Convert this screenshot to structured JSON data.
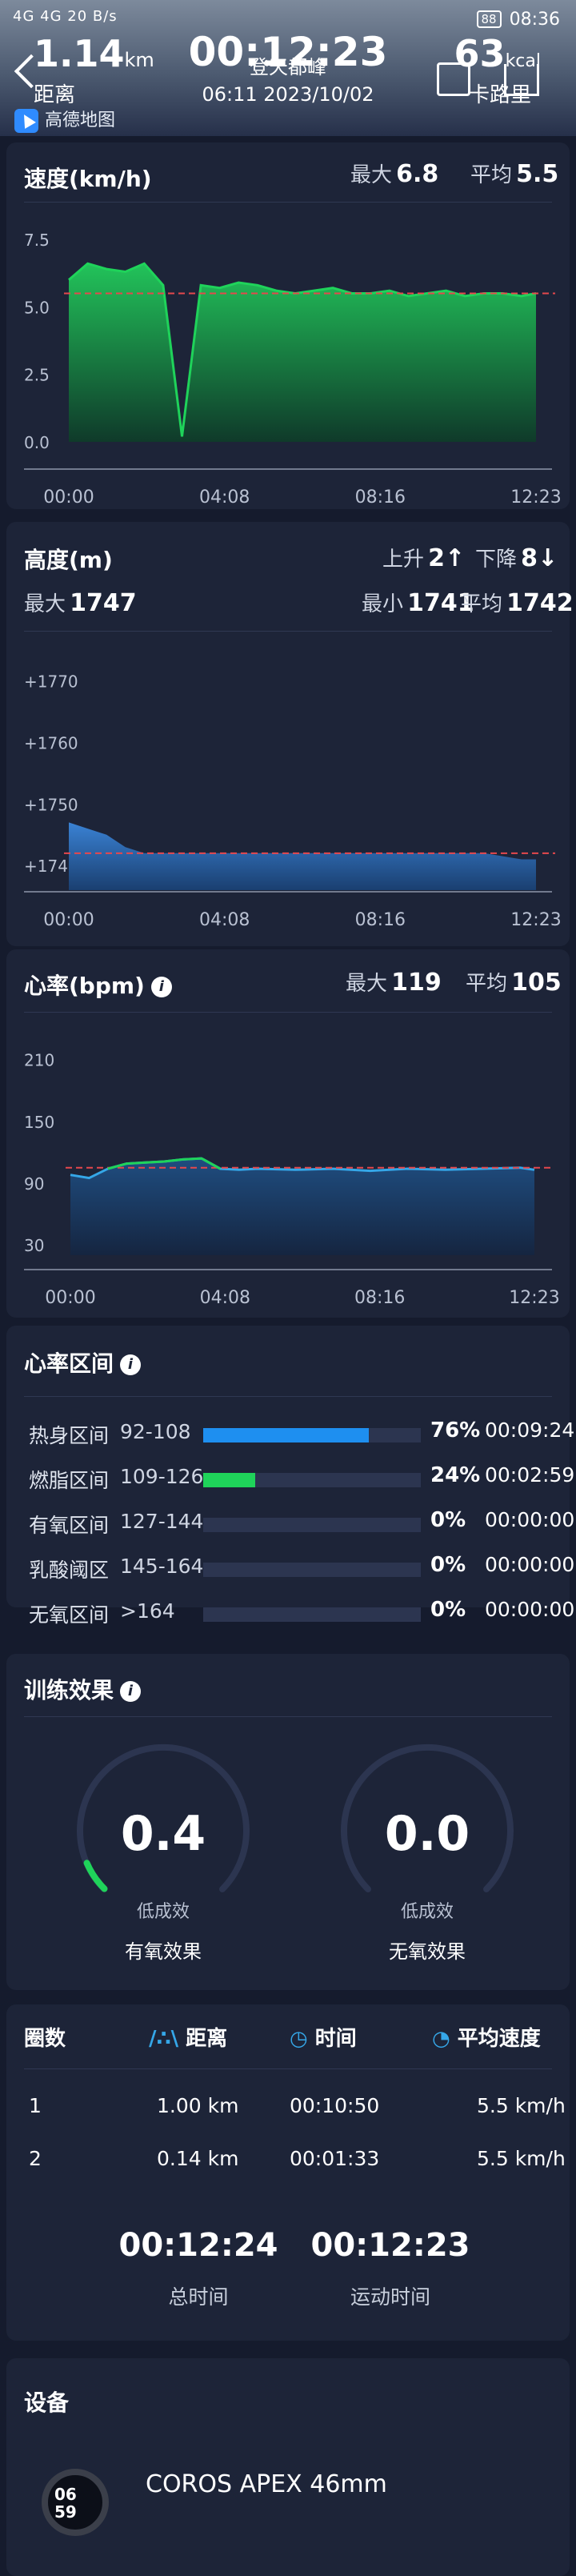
{
  "status_bar": {
    "left": "4G 4G 20 B/s",
    "battery": "88",
    "time": "08:36"
  },
  "header": {
    "distance_value": "1.14",
    "distance_unit": "km",
    "distance_label": "距离",
    "duration": "00:12:23",
    "activity_title": "登天都峰",
    "activity_time_label": "运动时间",
    "date": "06:11 2023/10/02",
    "calories_value": "63",
    "calories_unit": "kcal",
    "calories_label": "卡路里",
    "map_provider": "高德地图"
  },
  "speed": {
    "title": "速度(km/h)",
    "max_label": "最大",
    "max_value": "6.8",
    "avg_label": "平均",
    "avg_value": "5.5"
  },
  "altitude": {
    "title": "高度(m)",
    "ascent_label": "上升",
    "ascent_value": "2↑",
    "descent_label": "下降",
    "descent_value": "8↓",
    "max_label": "最大",
    "max_value": "1747",
    "min_label": "最小",
    "min_value": "1741",
    "avg_label": "平均",
    "avg_value": "1742"
  },
  "heart_rate": {
    "title": "心率(bpm)",
    "max_label": "最大",
    "max_value": "119",
    "avg_label": "平均",
    "avg_value": "105"
  },
  "hr_zones": {
    "title": "心率区间",
    "zones": [
      {
        "name": "热身区间",
        "range": "92-108",
        "percent": "76%",
        "time": "00:09:24",
        "fraction": 0.76,
        "color": "#1e8ff0"
      },
      {
        "name": "燃脂区间",
        "range": "109-126",
        "percent": "24%",
        "time": "00:02:59",
        "fraction": 0.24,
        "color": "#1fd35a"
      },
      {
        "name": "有氧区间",
        "range": "127-144",
        "percent": "0%",
        "time": "00:00:00",
        "fraction": 0,
        "color": "#f0c419"
      },
      {
        "name": "乳酸阈区",
        "range": "145-164",
        "percent": "0%",
        "time": "00:00:00",
        "fraction": 0,
        "color": "#f07a19"
      },
      {
        "name": "无氧区间",
        "range": ">164",
        "percent": "0%",
        "time": "00:00:00",
        "fraction": 0,
        "color": "#e83a3a"
      }
    ]
  },
  "training_effect": {
    "title": "训练效果",
    "aerobic": {
      "value": "0.4",
      "level": "低成效",
      "label": "有氧效果"
    },
    "anaerobic": {
      "value": "0.0",
      "level": "低成效",
      "label": "无氧效果"
    }
  },
  "laps": {
    "headers": {
      "lap": "圈数",
      "distance": "距离",
      "time": "时间",
      "pace": "平均速度"
    },
    "rows": [
      {
        "lap": "1",
        "distance": "1.00 km",
        "time": "00:10:50",
        "speed": "5.5 km/h"
      },
      {
        "lap": "2",
        "distance": "0.14 km",
        "time": "00:01:33",
        "speed": "5.5 km/h"
      }
    ],
    "total_time_value": "00:12:24",
    "total_time_label": "总时间",
    "moving_time_value": "00:12:23",
    "moving_time_label": "运动时间"
  },
  "device": {
    "title": "设备",
    "name": "COROS APEX 46mm",
    "watch_face_hour": "06",
    "watch_face_minute": "59"
  },
  "chart_data": [
    {
      "type": "area",
      "title": "速度(km/h)",
      "x": [
        "00:00",
        "00:30",
        "01:00",
        "01:30",
        "02:00",
        "02:30",
        "03:00",
        "03:30",
        "04:00",
        "04:30",
        "05:00",
        "05:30",
        "06:00",
        "06:30",
        "07:00",
        "07:30",
        "08:00",
        "08:30",
        "09:00",
        "09:30",
        "10:00",
        "10:30",
        "11:00",
        "11:30",
        "12:00",
        "12:23"
      ],
      "series": [
        {
          "values": [
            6.0,
            6.6,
            6.4,
            6.3,
            6.6,
            5.8,
            0.2,
            5.8,
            5.7,
            5.9,
            5.8,
            5.6,
            5.5,
            5.6,
            5.7,
            5.5,
            5.5,
            5.6,
            5.4,
            5.5,
            5.6,
            5.4,
            5.5,
            5.5,
            5.4,
            5.5
          ],
          "color": "#1fd35a"
        }
      ],
      "x_ticks": [
        "00:00",
        "04:08",
        "08:16",
        "12:23"
      ],
      "y_ticks": [
        "7.5",
        "5.0",
        "2.5",
        "0.0"
      ],
      "ylim": [
        0,
        8.3
      ],
      "reference_line": 5.5
    },
    {
      "type": "area",
      "title": "高度(m)",
      "x": [
        "00:00",
        "00:30",
        "01:00",
        "01:30",
        "02:00",
        "03:00",
        "04:00",
        "05:00",
        "06:00",
        "07:00",
        "08:00",
        "09:00",
        "10:00",
        "11:00",
        "12:00",
        "12:23"
      ],
      "series": [
        {
          "values": [
            1747,
            1746,
            1745,
            1743,
            1742,
            1742,
            1742,
            1742,
            1742,
            1742,
            1742,
            1742,
            1742,
            1742,
            1741,
            1741
          ],
          "color": "#2e74c8"
        }
      ],
      "x_ticks": [
        "00:00",
        "04:08",
        "08:16",
        "12:23"
      ],
      "y_ticks": [
        "+1770",
        "+1760",
        "+1750",
        "+1740"
      ],
      "ylim": [
        1736,
        1775
      ],
      "reference_line": 1742
    },
    {
      "type": "area",
      "title": "心率(bpm)",
      "x": [
        "00:00",
        "00:30",
        "01:00",
        "01:30",
        "02:00",
        "02:30",
        "03:00",
        "03:30",
        "04:00",
        "04:30",
        "05:00",
        "06:00",
        "07:00",
        "08:00",
        "09:00",
        "10:00",
        "11:00",
        "12:00",
        "12:23"
      ],
      "series": [
        {
          "values": [
            98,
            95,
            104,
            109,
            110,
            111,
            113,
            114,
            104,
            103,
            104,
            103,
            104,
            102,
            104,
            103,
            104,
            105,
            103
          ],
          "color": "#35a7e8"
        }
      ],
      "x_ticks": [
        "00:00",
        "04:08",
        "08:16",
        "12:23"
      ],
      "y_ticks": [
        "210",
        "150",
        "90",
        "30"
      ],
      "ylim": [
        20,
        230
      ],
      "reference_line": 105
    }
  ]
}
